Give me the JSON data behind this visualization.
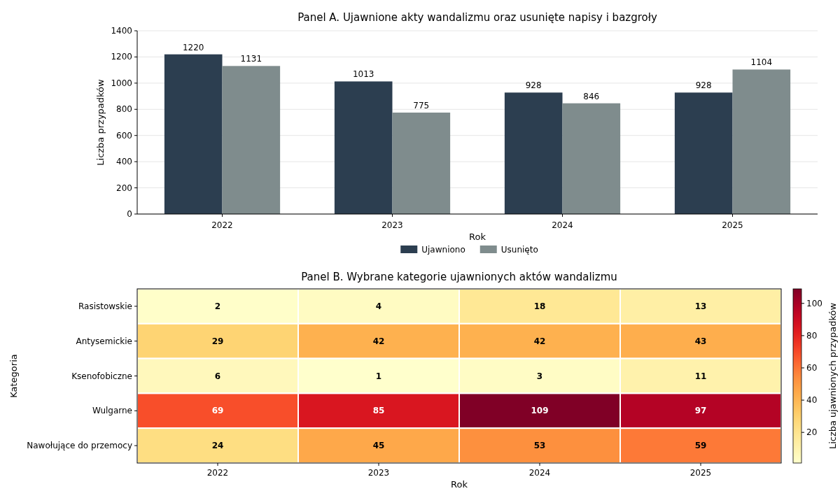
{
  "chart_data": [
    {
      "type": "bar",
      "title": "Panel A. Ujawnione akty wandalizmu oraz usunięte napisy i bazgroły",
      "xlabel": "Rok",
      "ylabel": "Liczba przypadków",
      "categories": [
        "2022",
        "2023",
        "2024",
        "2025"
      ],
      "series": [
        {
          "name": "Ujawniono",
          "color": "#2c3e50",
          "values": [
            1220,
            1013,
            928,
            928
          ]
        },
        {
          "name": "Usunięto",
          "color": "#7f8c8d",
          "values": [
            1131,
            775,
            846,
            1104
          ]
        }
      ],
      "ylim": [
        0,
        1400
      ],
      "yticks": [
        0,
        200,
        400,
        600,
        800,
        1000,
        1200,
        1400
      ],
      "grid": "y",
      "legend": "bottom",
      "data_labels": true
    },
    {
      "type": "heatmap",
      "title": "Panel B. Wybrane kategorie ujawnionych aktów wandalizmu",
      "xlabel": "Rok",
      "ylabel": "Kategoria",
      "clabel": "Liczba ujawnionych przypadków",
      "categories": [
        "2022",
        "2023",
        "2024",
        "2025"
      ],
      "y_categories": [
        "Rasistowskie",
        "Antysemickie",
        "Ksenofobiczne",
        "Wulgarne",
        "Nawołujące do przemocy"
      ],
      "cells": [
        [
          2,
          4,
          18,
          13
        ],
        [
          29,
          42,
          42,
          43
        ],
        [
          6,
          1,
          3,
          11
        ],
        [
          69,
          85,
          109,
          97
        ],
        [
          24,
          45,
          53,
          59
        ]
      ],
      "clim": [
        1,
        109
      ],
      "cticks": [
        20,
        40,
        60,
        80,
        100
      ],
      "data_labels": true
    }
  ]
}
